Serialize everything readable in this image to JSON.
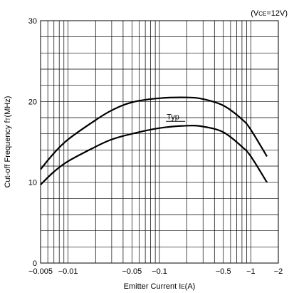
{
  "chart_data": {
    "type": "line",
    "condition_label": "(V",
    "condition_sub": "CE",
    "condition_rest": "=12V)",
    "ylabel_main": "Cut-off Frequency f",
    "ylabel_sub": "T",
    "ylabel_unit": "(MHz)",
    "xlabel_main": "Emitter Current I",
    "xlabel_sub": "E",
    "xlabel_unit": "(A)",
    "x_scale": "log",
    "x_direction": "negative values, magnitude increasing to the right",
    "xlim": [
      -0.005,
      -2
    ],
    "ylim": [
      0,
      30
    ],
    "y_ticks": [
      0,
      10,
      20,
      30
    ],
    "y_tick_labels": [
      "0",
      "10",
      "20",
      "30"
    ],
    "x_tick_values": [
      -0.005,
      -0.01,
      -0.05,
      -0.1,
      -0.5,
      -1,
      -2
    ],
    "x_tick_labels": [
      "−0.005",
      "−0.01",
      "−0.05",
      "−0.1",
      "−0.5",
      "−1",
      "−2"
    ],
    "grid": true,
    "annotation": "Typ",
    "series": [
      {
        "x": [
          -0.005,
          -0.007,
          -0.01,
          -0.02,
          -0.03,
          -0.05,
          -0.1,
          -0.2,
          -0.3,
          -0.5,
          -0.8,
          -1.0,
          -1.5
        ],
        "y": [
          11.6,
          13.6,
          15.3,
          17.7,
          18.9,
          19.9,
          20.4,
          20.5,
          20.3,
          19.5,
          17.8,
          16.5,
          13.2
        ]
      },
      {
        "x": [
          -0.005,
          -0.007,
          -0.01,
          -0.02,
          -0.03,
          -0.05,
          -0.1,
          -0.2,
          -0.3,
          -0.5,
          -0.8,
          -1.0,
          -1.5
        ],
        "y": [
          9.7,
          11.3,
          12.6,
          14.4,
          15.3,
          16.0,
          16.7,
          17.0,
          16.9,
          16.2,
          14.4,
          13.2,
          10.0
        ]
      }
    ]
  }
}
